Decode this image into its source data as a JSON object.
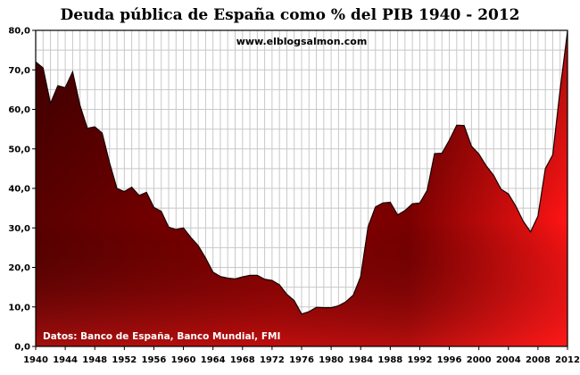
{
  "chart_data": {
    "type": "area",
    "title": "Deuda pública de España como % del PIB 1940 - 2012",
    "watermark": "www.elblogsalmon.com",
    "source_note": "Datos: Banco de España, Banco Mundial, FMI",
    "xlabel": "",
    "ylabel": "",
    "xlim": [
      1940,
      2012
    ],
    "ylim": [
      0,
      80
    ],
    "grid": true,
    "x_ticks": [
      1940,
      1944,
      1948,
      1952,
      1956,
      1960,
      1964,
      1968,
      1972,
      1976,
      1980,
      1984,
      1988,
      1992,
      1996,
      2000,
      2004,
      2008,
      2012
    ],
    "y_ticks": [
      "0,0",
      "10,0",
      "20,0",
      "30,0",
      "40,0",
      "50,0",
      "60,0",
      "70,0",
      "80,0"
    ],
    "colors": {
      "dark": "#6e0000",
      "mid": "#b00000",
      "bright": "#ff1414"
    },
    "series": [
      {
        "x": [
          1940,
          1941,
          1942,
          1943,
          1944,
          1945,
          1946,
          1947,
          1948,
          1949,
          1950,
          1951,
          1952,
          1953,
          1954,
          1955,
          1956,
          1957,
          1958,
          1959,
          1960,
          1961,
          1962,
          1963,
          1964,
          1965,
          1966,
          1967,
          1968,
          1969,
          1970,
          1971,
          1972,
          1973,
          1974,
          1975,
          1976,
          1977,
          1978,
          1979,
          1980,
          1981,
          1982,
          1983,
          1984,
          1985,
          1986,
          1987,
          1988,
          1989,
          1990,
          1991,
          1992,
          1993,
          1994,
          1995,
          1996,
          1997,
          1998,
          1999,
          2000,
          2001,
          2002,
          2003,
          2004,
          2005,
          2006,
          2007,
          2008,
          2009,
          2010,
          2011,
          2012
        ],
        "values": [
          72.0,
          70.5,
          61.5,
          66.0,
          65.5,
          69.5,
          61.0,
          55.2,
          55.6,
          54.0,
          46.5,
          40.0,
          39.2,
          40.3,
          38.2,
          39.0,
          35.2,
          34.2,
          30.2,
          29.6,
          30.0,
          27.6,
          25.5,
          22.4,
          18.8,
          17.7,
          17.3,
          17.1,
          17.6,
          18.0,
          18.0,
          17.0,
          16.7,
          15.6,
          13.2,
          11.6,
          8.2,
          8.8,
          9.9,
          9.8,
          9.8,
          10.3,
          11.3,
          13.0,
          17.7,
          30.3,
          35.3,
          36.3,
          36.5,
          33.3,
          34.4,
          36.1,
          36.3,
          39.5,
          48.8,
          48.9,
          52.2,
          56.0,
          55.9,
          50.7,
          48.7,
          45.7,
          43.3,
          39.8,
          38.6,
          35.5,
          31.7,
          29.0,
          33.0,
          45.0,
          48.5,
          65.0,
          79.8
        ]
      }
    ]
  }
}
